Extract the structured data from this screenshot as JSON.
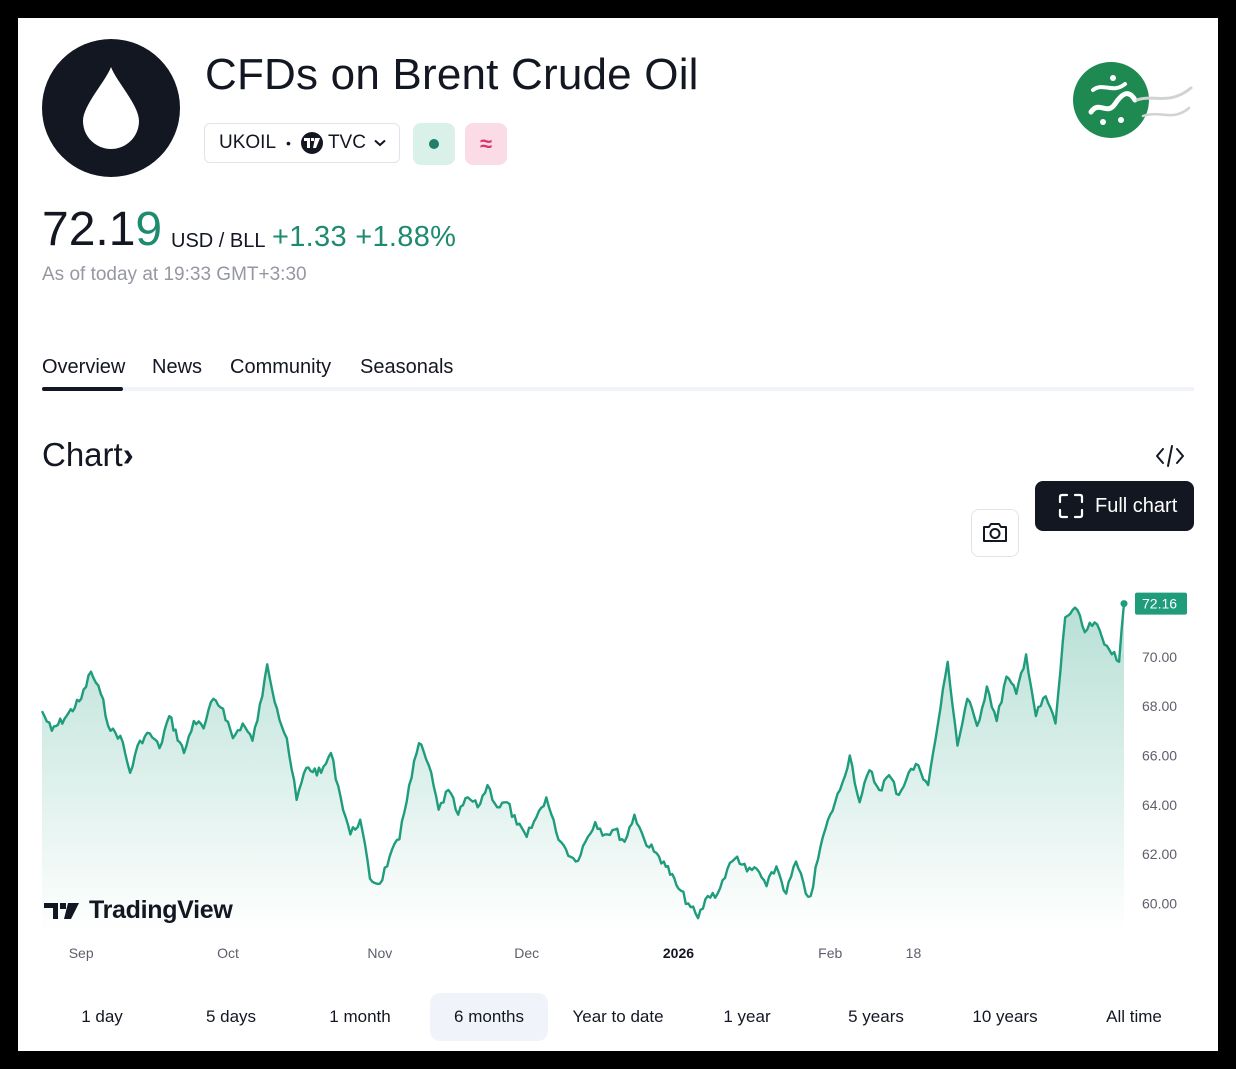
{
  "header": {
    "title": "CFDs on Brent Crude Oil",
    "symbol": "UKOIL",
    "separator": "•",
    "exchange": "TVC",
    "cfd_badge_glyph": "≈",
    "market_status_color": "#1f7f68",
    "logo_icon": "oil-drop-icon"
  },
  "quote": {
    "price_main": "72.1",
    "price_last_digit": "9",
    "unit": "USD / BLL",
    "change": "+1.33",
    "change_pct": "+1.88%",
    "as_of": "As of today at 19:33 GMT+3:30",
    "up_color": "#1f8b6e"
  },
  "tabs": [
    {
      "label": "Overview",
      "active": true
    },
    {
      "label": "News"
    },
    {
      "label": "Community"
    },
    {
      "label": "Seasonals"
    }
  ],
  "chart_section": {
    "heading": "Chart",
    "heading_arrow": "›",
    "full_chart_label": "Full chart",
    "brand": "TradingView"
  },
  "chart_data": {
    "type": "area",
    "title": "",
    "xlabel": "",
    "ylabel": "",
    "ylim": [
      58.8,
      73.2
    ],
    "y_ticks": [
      "60.00",
      "62.00",
      "64.00",
      "66.00",
      "68.00",
      "70.00"
    ],
    "last_value_label": "72.16",
    "x_ticks": [
      {
        "label": "Sep",
        "date": "2025-09-01"
      },
      {
        "label": "Oct",
        "date": "2025-10-01"
      },
      {
        "label": "Nov",
        "date": "2025-11-01"
      },
      {
        "label": "Dec",
        "date": "2025-12-01"
      },
      {
        "label": "2026",
        "date": "2026-01-01",
        "bold": true
      },
      {
        "label": "Feb",
        "date": "2026-02-01"
      },
      {
        "label": "18",
        "date": "2026-02-18"
      }
    ],
    "series": [
      {
        "line_color": "#1f9c7c",
        "points": [
          [
            "2025-08-24",
            67.8
          ],
          [
            "2025-08-26",
            67.0
          ],
          [
            "2025-08-29",
            67.6
          ],
          [
            "2025-09-01",
            68.3
          ],
          [
            "2025-09-03",
            69.4
          ],
          [
            "2025-09-05",
            68.5
          ],
          [
            "2025-09-07",
            67.0
          ],
          [
            "2025-09-09",
            66.8
          ],
          [
            "2025-09-11",
            65.3
          ],
          [
            "2025-09-13",
            66.6
          ],
          [
            "2025-09-15",
            66.9
          ],
          [
            "2025-09-17",
            66.3
          ],
          [
            "2025-09-19",
            67.6
          ],
          [
            "2025-09-22",
            66.1
          ],
          [
            "2025-09-24",
            67.4
          ],
          [
            "2025-09-26",
            67.1
          ],
          [
            "2025-09-28",
            68.3
          ],
          [
            "2025-09-30",
            67.9
          ],
          [
            "2025-10-02",
            66.7
          ],
          [
            "2025-10-04",
            67.3
          ],
          [
            "2025-10-06",
            66.6
          ],
          [
            "2025-10-08",
            68.4
          ],
          [
            "2025-10-09",
            69.7
          ],
          [
            "2025-10-11",
            67.9
          ],
          [
            "2025-10-13",
            66.7
          ],
          [
            "2025-10-15",
            64.2
          ],
          [
            "2025-10-17",
            65.5
          ],
          [
            "2025-10-20",
            65.3
          ],
          [
            "2025-10-22",
            66.1
          ],
          [
            "2025-10-24",
            64.3
          ],
          [
            "2025-10-26",
            62.8
          ],
          [
            "2025-10-28",
            63.4
          ],
          [
            "2025-10-30",
            61.0
          ],
          [
            "2025-11-01",
            60.8
          ],
          [
            "2025-11-03",
            61.9
          ],
          [
            "2025-11-05",
            62.6
          ],
          [
            "2025-11-07",
            64.8
          ],
          [
            "2025-11-09",
            66.5
          ],
          [
            "2025-11-11",
            65.6
          ],
          [
            "2025-11-13",
            63.8
          ],
          [
            "2025-11-15",
            64.6
          ],
          [
            "2025-11-17",
            63.6
          ],
          [
            "2025-11-19",
            64.3
          ],
          [
            "2025-11-21",
            63.9
          ],
          [
            "2025-11-23",
            64.8
          ],
          [
            "2025-11-25",
            63.9
          ],
          [
            "2025-11-27",
            64.1
          ],
          [
            "2025-11-29",
            63.2
          ],
          [
            "2025-12-01",
            62.7
          ],
          [
            "2025-12-03",
            63.5
          ],
          [
            "2025-12-05",
            64.3
          ],
          [
            "2025-12-07",
            62.9
          ],
          [
            "2025-12-09",
            62.2
          ],
          [
            "2025-12-11",
            61.7
          ],
          [
            "2025-12-13",
            62.5
          ],
          [
            "2025-12-15",
            63.3
          ],
          [
            "2025-12-17",
            62.8
          ],
          [
            "2025-12-19",
            63.0
          ],
          [
            "2025-12-21",
            62.5
          ],
          [
            "2025-12-23",
            63.6
          ],
          [
            "2025-12-25",
            62.6
          ],
          [
            "2025-12-27",
            62.1
          ],
          [
            "2025-12-29",
            61.7
          ],
          [
            "2026-01-01",
            60.6
          ],
          [
            "2026-01-03",
            60.0
          ],
          [
            "2026-01-05",
            59.4
          ],
          [
            "2026-01-07",
            60.3
          ],
          [
            "2026-01-09",
            60.4
          ],
          [
            "2026-01-11",
            61.4
          ],
          [
            "2026-01-13",
            61.9
          ],
          [
            "2026-01-15",
            61.3
          ],
          [
            "2026-01-17",
            61.4
          ],
          [
            "2026-01-19",
            60.7
          ],
          [
            "2026-01-21",
            61.5
          ],
          [
            "2026-01-23",
            60.4
          ],
          [
            "2026-01-25",
            61.7
          ],
          [
            "2026-01-27",
            60.4
          ],
          [
            "2026-01-28",
            60.3
          ],
          [
            "2026-01-30",
            62.3
          ],
          [
            "2026-02-01",
            63.6
          ],
          [
            "2026-02-03",
            64.6
          ],
          [
            "2026-02-05",
            66.0
          ],
          [
            "2026-02-07",
            64.1
          ],
          [
            "2026-02-09",
            65.4
          ],
          [
            "2026-02-11",
            64.6
          ],
          [
            "2026-02-13",
            65.2
          ],
          [
            "2026-02-15",
            64.4
          ],
          [
            "2026-02-17",
            65.3
          ],
          [
            "2026-02-19",
            65.6
          ],
          [
            "2026-02-21",
            64.8
          ],
          [
            "2026-02-23",
            67.3
          ],
          [
            "2026-02-25",
            69.8
          ],
          [
            "2026-02-27",
            66.4
          ],
          [
            "2026-03-01",
            68.3
          ],
          [
            "2026-03-03",
            67.2
          ],
          [
            "2026-03-05",
            68.8
          ],
          [
            "2026-03-07",
            67.4
          ],
          [
            "2026-03-09",
            69.2
          ],
          [
            "2026-03-11",
            68.5
          ],
          [
            "2026-03-13",
            70.1
          ],
          [
            "2026-03-15",
            67.6
          ],
          [
            "2026-03-17",
            68.4
          ],
          [
            "2026-03-19",
            67.3
          ],
          [
            "2026-03-21",
            71.6
          ],
          [
            "2026-03-23",
            72.0
          ],
          [
            "2026-03-25",
            71.0
          ],
          [
            "2026-03-27",
            71.4
          ],
          [
            "2026-03-29",
            70.5
          ],
          [
            "2026-03-31",
            70.2
          ],
          [
            "2026-04-01",
            69.8
          ],
          [
            "2026-04-02",
            72.16
          ]
        ]
      }
    ]
  },
  "ranges": [
    {
      "label": "1 day"
    },
    {
      "label": "5 days"
    },
    {
      "label": "1 month"
    },
    {
      "label": "6 months",
      "active": true
    },
    {
      "label": "Year to date"
    },
    {
      "label": "1 year"
    },
    {
      "label": "5 years"
    },
    {
      "label": "10 years"
    },
    {
      "label": "All time"
    }
  ]
}
